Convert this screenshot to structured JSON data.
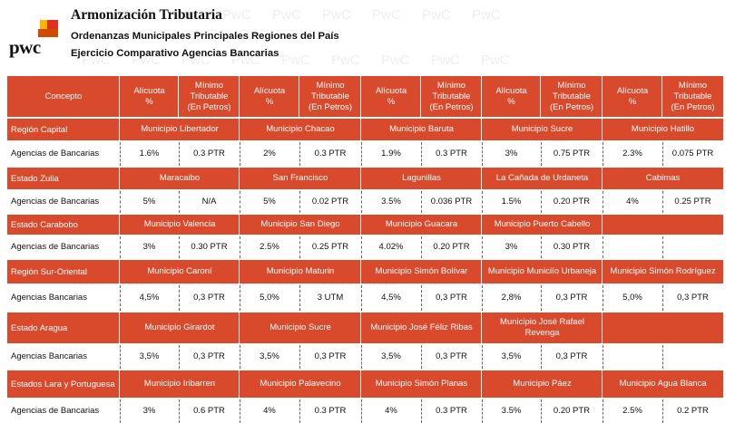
{
  "header": {
    "logo_text": "pwc",
    "title": "Armonización Tributaria",
    "subtitle1": "Ordenanzas Municipales Principales Regiones del País",
    "subtitle2": "Ejercicio Comparativo Agencias Bancarias",
    "watermark": "PwC"
  },
  "colors": {
    "accent": "#d9492b",
    "logo_orange": "#e0301e",
    "logo_yellow": "#ffb600",
    "logo_red": "#d04a02"
  },
  "table": {
    "headers": [
      "Concepto",
      "Alícuota\n%",
      "Mínimo\nTributable\n(En Petros)",
      "Alícuota\n%",
      "Mínimo\nTributable\n(En Petros)",
      "Alícuota\n%",
      "Mínimo\nTributable\n(En Petros)",
      "Alícuota\n%",
      "Mínimo\nTributable\n(En Petros)",
      "Alícuota\n%",
      "Mínimo\nTributable\n(En Petros)"
    ],
    "groups": [
      {
        "region": "Región Capital",
        "municipalities": [
          "Municipio Libertador",
          "Municipio Chacao",
          "Municipio Baruta",
          "Municipio Sucre",
          "Municipio Hatillo"
        ],
        "concept": "Agencias de Bancarias",
        "values": [
          "1.6%",
          "0.3 PTR",
          "2%",
          "0.3 PTR",
          "1.9%",
          "0.3 PTR",
          "3%",
          "0.75 PTR",
          "2.3%",
          "0.075 PTR"
        ]
      },
      {
        "region": "Estado Zulia",
        "municipalities": [
          "Maracaibo",
          "San Francisco",
          "Lagunillas",
          "La Cañada de Urdaneta",
          "Cabimas"
        ],
        "concept": "Agencias de Bancarias",
        "values": [
          "5%",
          "N/A",
          "5%",
          "0.02 PTR",
          "3.5%",
          "0.036 PTR",
          "1.5%",
          "0.20 PTR",
          "4%",
          "0.25 PTR"
        ]
      },
      {
        "region": "Estado Carabobo",
        "municipalities": [
          "Municipio Valencia",
          "Municipio San Diego",
          "Municipio Guacara",
          "Municipio Puerto Cabello",
          ""
        ],
        "concept": "Agencias de Bancarias",
        "values": [
          "3%",
          "0.30 PTR",
          "2.5%",
          "0.25 PTR",
          "4.02%",
          "0.20 PTR",
          "3%",
          "0.30 PTR",
          "",
          ""
        ]
      },
      {
        "region": "Región Sur-Oriental",
        "municipalities": [
          "Municipio Caroní",
          "Municipio Maturin",
          "Municipio Simón Bolívar",
          "Municipio Municiío Urbaneja",
          "Municipio Simón Rodríguez"
        ],
        "concept": "Agencias Bancarias",
        "values": [
          "4,5%",
          "0,3 PTR",
          "5,0%",
          "3 UTM",
          "4,5%",
          "0,3 PTR",
          "2,8%",
          "0,3 PTR",
          "5,0%",
          "0,3 PTR"
        ]
      },
      {
        "region": "Estado Aragua",
        "municipalities": [
          "Municipio Girardot",
          "Municipio Sucre",
          "Municipio José Féliz Ribas",
          "Municipio José Rafael Revenga",
          ""
        ],
        "concept": "Agencias Bancarias",
        "values": [
          "3,5%",
          "0,3 PTR",
          "3,5%",
          "0,3 PTR",
          "3,5%",
          "0,3 PTR",
          "3,5%",
          "0,3 PTR",
          "",
          ""
        ]
      },
      {
        "region": "Estados Lara y Portuguesa",
        "municipalities": [
          "Municipio Iribarren",
          "Municipio Palavecino",
          "Municipio Simón Planas",
          "Municipio Páez",
          "Municipio Agua Blanca"
        ],
        "concept": "Agencias de Bancarias",
        "values": [
          "3%",
          "0.6 PTR",
          "4%",
          "0.3 PTR",
          "4%",
          "0.3 PTR",
          "3.5%",
          "0.20 PTR",
          "2.5%",
          "0.2 PTR"
        ]
      }
    ]
  }
}
